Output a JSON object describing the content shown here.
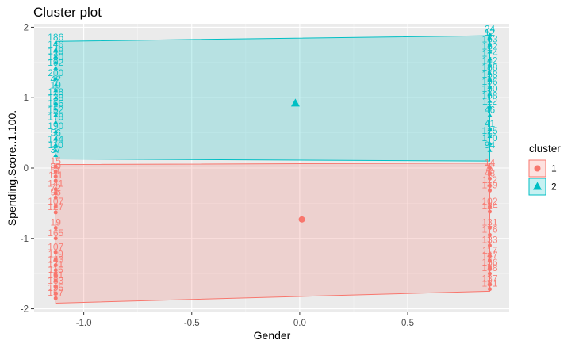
{
  "chart_data": {
    "type": "scatter",
    "title": "Cluster plot",
    "xlabel": "Gender",
    "ylabel": "Spending.Score..1.100.",
    "xlim": [
      -1.23,
      0.97
    ],
    "ylim": [
      -2.05,
      2.05
    ],
    "xticks": [
      -1.0,
      -0.5,
      0.0,
      0.5
    ],
    "xtick_labels": [
      "-1.0",
      "-0.5",
      "0.0",
      "0.5"
    ],
    "yticks": [
      -2,
      -1,
      0,
      1,
      2
    ],
    "ytick_labels": [
      "-2",
      "-1",
      "0",
      "1",
      "2"
    ],
    "grid": true,
    "legend": {
      "title": "cluster",
      "placement": "right",
      "entries": [
        {
          "label": "1",
          "color": "#f8766d",
          "shape": "circle"
        },
        {
          "label": "2",
          "color": "#00bfc4",
          "shape": "triangle"
        }
      ]
    },
    "series": [
      {
        "name": "1",
        "color": "#f8766d",
        "hull": [
          [
            -1.13,
            -1.92
          ],
          [
            0.88,
            -1.75
          ],
          [
            0.88,
            0.07
          ],
          [
            -1.13,
            0.05
          ]
        ],
        "centroid": [
          0.01,
          -0.73
        ],
        "left_x": -1.13,
        "right_x": 0.88,
        "left_labels": [
          {
            "y": 0.02,
            "t": "15"
          },
          {
            "y": -0.05,
            "t": "80"
          },
          {
            "y": -0.12,
            "t": "51"
          },
          {
            "y": -0.18,
            "t": "111"
          },
          {
            "y": -0.3,
            "t": "141"
          },
          {
            "y": -0.36,
            "t": "72"
          },
          {
            "y": -0.42,
            "t": "95"
          },
          {
            "y": -0.55,
            "t": "107"
          },
          {
            "y": -0.63,
            "t": "127"
          },
          {
            "y": -0.85,
            "t": "19"
          },
          {
            "y": -1.0,
            "t": "165"
          },
          {
            "y": -1.2,
            "t": "107"
          },
          {
            "y": -1.3,
            "t": "119"
          },
          {
            "y": -1.38,
            "t": "143"
          },
          {
            "y": -1.45,
            "t": "171"
          },
          {
            "y": -1.52,
            "t": "115"
          },
          {
            "y": -1.6,
            "t": "161"
          },
          {
            "y": -1.68,
            "t": "183"
          },
          {
            "y": -1.78,
            "t": "195"
          },
          {
            "y": -1.85,
            "t": "157"
          }
        ],
        "right_labels": [
          {
            "y": 0.0,
            "t": "14"
          },
          {
            "y": -0.08,
            "t": "77"
          },
          {
            "y": -0.15,
            "t": "48"
          },
          {
            "y": -0.25,
            "t": "112"
          },
          {
            "y": -0.32,
            "t": "149"
          },
          {
            "y": -0.55,
            "t": "102"
          },
          {
            "y": -0.62,
            "t": "124"
          },
          {
            "y": -0.85,
            "t": "131"
          },
          {
            "y": -0.95,
            "t": "176"
          },
          {
            "y": -1.1,
            "t": "133"
          },
          {
            "y": -1.25,
            "t": "117"
          },
          {
            "y": -1.32,
            "t": "147"
          },
          {
            "y": -1.42,
            "t": "156"
          },
          {
            "y": -1.5,
            "t": "188"
          },
          {
            "y": -1.65,
            "t": "137"
          },
          {
            "y": -1.72,
            "t": "181"
          }
        ]
      },
      {
        "name": "2",
        "color": "#00bfc4",
        "hull": [
          [
            -1.13,
            1.8
          ],
          [
            0.88,
            1.88
          ],
          [
            0.88,
            0.1
          ],
          [
            -1.13,
            0.13
          ]
        ],
        "centroid": [
          -0.02,
          0.92
        ],
        "left_x": -1.13,
        "right_x": 0.88,
        "left_labels": [
          {
            "y": 1.78,
            "t": "186"
          },
          {
            "y": 1.68,
            "t": "146"
          },
          {
            "y": 1.58,
            "t": "148"
          },
          {
            "y": 1.5,
            "t": "180"
          },
          {
            "y": 1.42,
            "t": "192"
          },
          {
            "y": 1.27,
            "t": "200"
          },
          {
            "y": 1.18,
            "t": "42"
          },
          {
            "y": 1.1,
            "t": "19"
          },
          {
            "y": 1.0,
            "t": "128"
          },
          {
            "y": 0.92,
            "t": "138"
          },
          {
            "y": 0.84,
            "t": "166"
          },
          {
            "y": 0.75,
            "t": "152"
          },
          {
            "y": 0.65,
            "t": "178"
          },
          {
            "y": 0.52,
            "t": "190"
          },
          {
            "y": 0.42,
            "t": "56"
          },
          {
            "y": 0.33,
            "t": "144"
          },
          {
            "y": 0.25,
            "t": "110"
          },
          {
            "y": 0.18,
            "t": "37"
          }
        ],
        "right_labels": [
          {
            "y": 1.9,
            "t": "24"
          },
          {
            "y": 1.85,
            "t": "12"
          },
          {
            "y": 1.75,
            "t": "163"
          },
          {
            "y": 1.65,
            "t": "182"
          },
          {
            "y": 1.55,
            "t": "174"
          },
          {
            "y": 1.45,
            "t": "142"
          },
          {
            "y": 1.35,
            "t": "188"
          },
          {
            "y": 1.25,
            "t": "158"
          },
          {
            "y": 1.15,
            "t": "196"
          },
          {
            "y": 1.05,
            "t": "130"
          },
          {
            "y": 0.95,
            "t": "168"
          },
          {
            "y": 0.87,
            "t": "112"
          },
          {
            "y": 0.75,
            "t": "46"
          },
          {
            "y": 0.55,
            "t": "41"
          },
          {
            "y": 0.45,
            "t": "125"
          },
          {
            "y": 0.35,
            "t": "170"
          },
          {
            "y": 0.25,
            "t": "94"
          }
        ]
      }
    ]
  }
}
